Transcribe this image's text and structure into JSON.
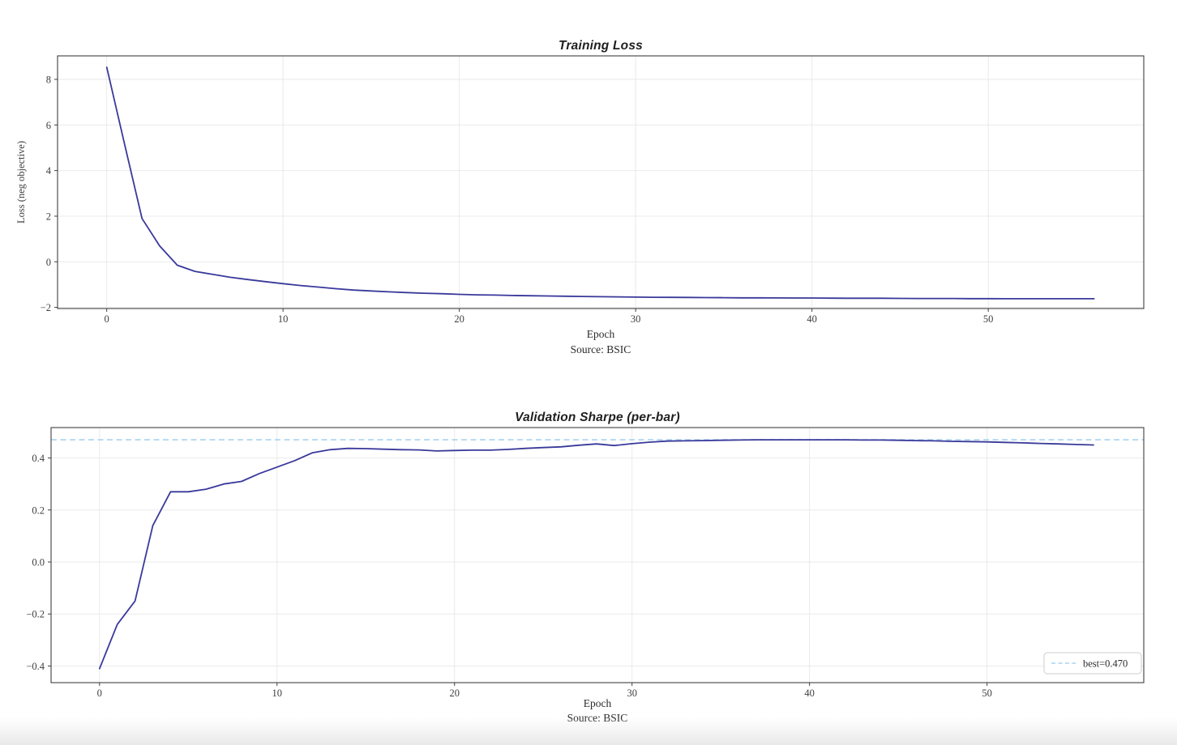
{
  "page": {
    "background": "#ffffff"
  },
  "colors": {
    "line": "#39399b",
    "ref_line": "#a9d3f0",
    "grid": "#e8e8e8",
    "spine": "#3f3f3f",
    "tick_text": "#3d3d3d",
    "title_text": "#1f1f1f",
    "legend_border": "#cccccc",
    "legend_background": "#ffffff"
  },
  "chart_data": [
    {
      "type": "line",
      "title": "Training Loss",
      "xlabel": "Epoch",
      "ylabel": "Loss (neg objective)",
      "source": "Source: BSIC",
      "grid": true,
      "xlim": [
        -2.79,
        58.82
      ],
      "ylim": [
        -2.05,
        9.03
      ],
      "xticks": [
        0,
        10,
        20,
        30,
        40,
        50
      ],
      "xtick_labels": [
        "0",
        "10",
        "20",
        "30",
        "40",
        "50"
      ],
      "yticks": [
        -2,
        0,
        2,
        4,
        6,
        8
      ],
      "ytick_labels": [
        "−2",
        "0",
        "2",
        "4",
        "6",
        "8"
      ],
      "series": [
        {
          "name": "training-loss",
          "color": "#39399b",
          "x": [
            0,
            1,
            2,
            3,
            4,
            5,
            6,
            7,
            8,
            9,
            10,
            11,
            12,
            13,
            14,
            15,
            16,
            17,
            18,
            19,
            20,
            21,
            22,
            23,
            24,
            25,
            26,
            27,
            28,
            29,
            30,
            31,
            32,
            33,
            34,
            35,
            36,
            37,
            38,
            39,
            40,
            41,
            42,
            43,
            44,
            45,
            46,
            47,
            48,
            49,
            50,
            51,
            52,
            53,
            54,
            55,
            56
          ],
          "values": [
            8.53,
            5.2,
            1.9,
            0.7,
            -0.15,
            -0.42,
            -0.55,
            -0.68,
            -0.78,
            -0.87,
            -0.96,
            -1.04,
            -1.11,
            -1.18,
            -1.24,
            -1.28,
            -1.32,
            -1.35,
            -1.38,
            -1.4,
            -1.43,
            -1.45,
            -1.46,
            -1.48,
            -1.49,
            -1.5,
            -1.51,
            -1.52,
            -1.53,
            -1.54,
            -1.55,
            -1.555,
            -1.56,
            -1.565,
            -1.57,
            -1.575,
            -1.58,
            -1.58,
            -1.585,
            -1.59,
            -1.59,
            -1.595,
            -1.6,
            -1.6,
            -1.6,
            -1.605,
            -1.61,
            -1.61,
            -1.61,
            -1.615,
            -1.615,
            -1.62,
            -1.62,
            -1.62,
            -1.62,
            -1.62,
            -1.62
          ]
        }
      ]
    },
    {
      "type": "line",
      "title": "Validation Sharpe (per-bar)",
      "xlabel": "Epoch",
      "ylabel": "",
      "source": "Source: BSIC",
      "grid": true,
      "xlim": [
        -2.73,
        58.83
      ],
      "ylim": [
        -0.464,
        0.517
      ],
      "xticks": [
        0,
        10,
        20,
        30,
        40,
        50
      ],
      "xtick_labels": [
        "0",
        "10",
        "20",
        "30",
        "40",
        "50"
      ],
      "yticks": [
        -0.4,
        -0.2,
        0.0,
        0.2,
        0.4
      ],
      "ytick_labels": [
        "−0.4",
        "−0.2",
        "0.0",
        "0.2",
        "0.4"
      ],
      "ref_line": {
        "value": 0.47,
        "label": "best=0.470",
        "color": "#a9d3f0",
        "style": "dashed"
      },
      "legend": {
        "position": "lower right",
        "entries": [
          "best=0.470"
        ]
      },
      "series": [
        {
          "name": "validation-sharpe",
          "color": "#39399b",
          "x": [
            0,
            1,
            2,
            3,
            4,
            5,
            6,
            7,
            8,
            9,
            10,
            11,
            12,
            13,
            14,
            15,
            16,
            17,
            18,
            19,
            20,
            21,
            22,
            23,
            24,
            25,
            26,
            27,
            28,
            29,
            30,
            31,
            32,
            33,
            34,
            35,
            36,
            37,
            38,
            39,
            40,
            41,
            42,
            43,
            44,
            45,
            46,
            47,
            48,
            49,
            50,
            51,
            52,
            53,
            54,
            55,
            56
          ],
          "values": [
            -0.41,
            -0.24,
            -0.15,
            0.14,
            0.27,
            0.27,
            0.28,
            0.3,
            0.31,
            0.34,
            0.365,
            0.39,
            0.42,
            0.432,
            0.437,
            0.436,
            0.434,
            0.432,
            0.431,
            0.427,
            0.429,
            0.43,
            0.43,
            0.433,
            0.437,
            0.44,
            0.443,
            0.449,
            0.454,
            0.448,
            0.455,
            0.461,
            0.465,
            0.466,
            0.467,
            0.468,
            0.469,
            0.47,
            0.47,
            0.47,
            0.47,
            0.47,
            0.47,
            0.469,
            0.469,
            0.468,
            0.467,
            0.466,
            0.464,
            0.463,
            0.462,
            0.46,
            0.458,
            0.456,
            0.454,
            0.452,
            0.45
          ]
        }
      ]
    }
  ]
}
